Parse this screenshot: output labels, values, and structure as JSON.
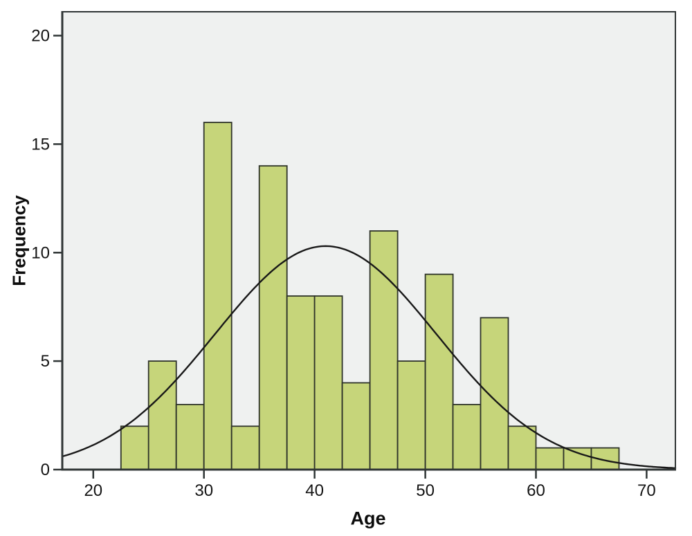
{
  "chart_data": {
    "type": "bar",
    "subtype": "histogram-with-normal-curve",
    "title": "",
    "xlabel": "Age",
    "ylabel": "Frequency",
    "xlim": [
      17.2,
      72.6
    ],
    "ylim": [
      0,
      21.1
    ],
    "x_ticks": [
      20,
      30,
      40,
      50,
      60,
      70
    ],
    "y_ticks": [
      0,
      5,
      10,
      15,
      20
    ],
    "bin_width": 2.5,
    "bins": [
      {
        "x0": 22.5,
        "x1": 25.0,
        "count": 2
      },
      {
        "x0": 25.0,
        "x1": 27.5,
        "count": 5
      },
      {
        "x0": 27.5,
        "x1": 30.0,
        "count": 3
      },
      {
        "x0": 30.0,
        "x1": 32.5,
        "count": 16
      },
      {
        "x0": 32.5,
        "x1": 35.0,
        "count": 2
      },
      {
        "x0": 35.0,
        "x1": 37.5,
        "count": 14
      },
      {
        "x0": 37.5,
        "x1": 40.0,
        "count": 8
      },
      {
        "x0": 40.0,
        "x1": 42.5,
        "count": 8
      },
      {
        "x0": 42.5,
        "x1": 45.0,
        "count": 4
      },
      {
        "x0": 45.0,
        "x1": 47.5,
        "count": 11
      },
      {
        "x0": 47.5,
        "x1": 50.0,
        "count": 5
      },
      {
        "x0": 50.0,
        "x1": 52.5,
        "count": 9
      },
      {
        "x0": 52.5,
        "x1": 55.0,
        "count": 3
      },
      {
        "x0": 55.0,
        "x1": 57.5,
        "count": 7
      },
      {
        "x0": 57.5,
        "x1": 60.0,
        "count": 2
      },
      {
        "x0": 60.0,
        "x1": 62.5,
        "count": 1
      },
      {
        "x0": 62.5,
        "x1": 65.0,
        "count": 1
      },
      {
        "x0": 65.0,
        "x1": 67.5,
        "count": 1
      }
    ],
    "normal_curve": {
      "mean": 41.0,
      "sd": 10.0,
      "peak_height": 10.3
    },
    "grid": false,
    "legend_position": "none",
    "colors": {
      "bar_fill": "#c6d57a",
      "bar_border": "#2e3329",
      "curve": "#181818",
      "plot_bg": "#eff1f0",
      "frame": "#2f3535",
      "page_bg": "#ffffff",
      "text": "#141414"
    }
  }
}
